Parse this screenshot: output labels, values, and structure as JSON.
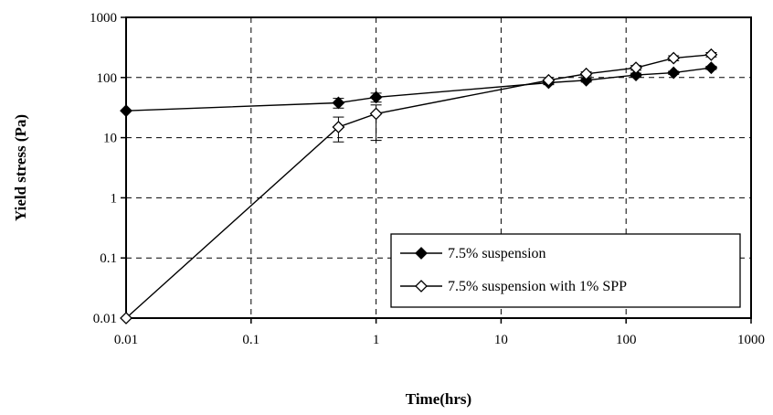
{
  "chart_data": {
    "type": "line",
    "xlabel": "Time(hrs)",
    "ylabel": "Yield stress (Pa)",
    "xscale": "log",
    "yscale": "log",
    "xlim": [
      0.01,
      1000
    ],
    "ylim": [
      0.01,
      1000
    ],
    "x_ticks": [
      "0.01",
      "0.1",
      "1",
      "10",
      "100",
      "1000"
    ],
    "y_ticks": [
      "0.01",
      "0.1",
      "1",
      "10",
      "100",
      "1000"
    ],
    "grid": true,
    "legend_position": "bottom-right",
    "series": [
      {
        "name": "7.5% suspension",
        "marker": "filled-diamond",
        "color": "#000000",
        "points": [
          {
            "x": 0.01,
            "y": 28
          },
          {
            "x": 0.5,
            "y": 38,
            "err_lo": 31,
            "err_hi": 45
          },
          {
            "x": 1,
            "y": 47,
            "err_lo": 39,
            "err_hi": 55
          },
          {
            "x": 24,
            "y": 82,
            "err_lo": 76,
            "err_hi": 88
          },
          {
            "x": 48,
            "y": 90,
            "err_lo": 84,
            "err_hi": 97
          },
          {
            "x": 120,
            "y": 110,
            "err_lo": 103,
            "err_hi": 118
          },
          {
            "x": 240,
            "y": 120,
            "err_lo": 113,
            "err_hi": 127
          },
          {
            "x": 480,
            "y": 145,
            "err_lo": 136,
            "err_hi": 154
          }
        ]
      },
      {
        "name": "7.5% suspension with 1% SPP",
        "marker": "open-diamond",
        "color": "#000000",
        "points": [
          {
            "x": 0.01,
            "y": 0.01
          },
          {
            "x": 0.5,
            "y": 15,
            "err_lo": 8.5,
            "err_hi": 22
          },
          {
            "x": 1,
            "y": 25,
            "err_lo": 9,
            "err_hi": 35
          },
          {
            "x": 24,
            "y": 90,
            "err_lo": 82,
            "err_hi": 100
          },
          {
            "x": 48,
            "y": 115,
            "err_lo": 106,
            "err_hi": 124
          },
          {
            "x": 120,
            "y": 145,
            "err_lo": 132,
            "err_hi": 158
          },
          {
            "x": 240,
            "y": 210,
            "err_lo": 190,
            "err_hi": 230
          },
          {
            "x": 480,
            "y": 240,
            "err_lo": 220,
            "err_hi": 260
          }
        ]
      }
    ]
  }
}
